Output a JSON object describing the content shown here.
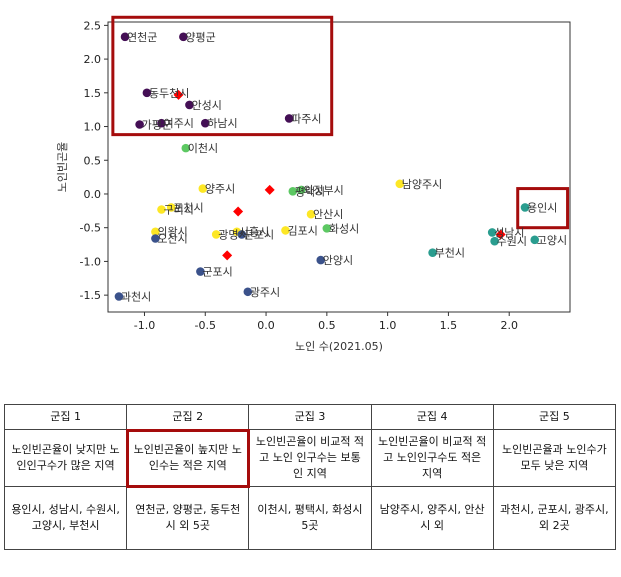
{
  "chart_data": {
    "type": "scatter",
    "xlabel": "노인 수(2021.05)",
    "ylabel": "노인빈곤율",
    "xlim": [
      -1.3,
      2.5
    ],
    "ylim": [
      -1.75,
      2.55
    ],
    "xticks": [
      "-1.0",
      "-0.5",
      "0.0",
      "0.5",
      "1.0",
      "1.5",
      "2.0"
    ],
    "xtick_values": [
      -1.0,
      -0.5,
      0.0,
      0.5,
      1.0,
      1.5,
      2.0
    ],
    "yticks": [
      "2.5",
      "2.0",
      "1.5",
      "1.0",
      "0.5",
      "0.0",
      "-0.5",
      "-1.0",
      "-1.5"
    ],
    "ytick_values": [
      2.5,
      2.0,
      1.5,
      1.0,
      0.5,
      0.0,
      -0.5,
      -1.0,
      -1.5
    ],
    "grid": false,
    "cluster_colors": {
      "c1": "#2a9d8f",
      "c2": "#440f55",
      "c3": "#5cc862",
      "c4": "#fde725",
      "c5": "#3b528b",
      "centroid": "#ff0000",
      "highlight": "#a50c0c"
    },
    "points": [
      {
        "x": -1.16,
        "y": 2.33,
        "cluster": "c2",
        "label": "연천군"
      },
      {
        "x": -0.68,
        "y": 2.33,
        "cluster": "c2",
        "label": "양평군"
      },
      {
        "x": -0.98,
        "y": 1.5,
        "cluster": "c2",
        "label": "동두천시"
      },
      {
        "x": -0.63,
        "y": 1.32,
        "cluster": "c2",
        "label": "안성시"
      },
      {
        "x": 0.19,
        "y": 1.12,
        "cluster": "c2",
        "label": "파주시"
      },
      {
        "x": -1.04,
        "y": 1.03,
        "cluster": "c2",
        "label": "가평군"
      },
      {
        "x": -0.86,
        "y": 1.05,
        "cluster": "c2",
        "label": "여주시"
      },
      {
        "x": -0.5,
        "y": 1.05,
        "cluster": "c2",
        "label": "하남시"
      },
      {
        "x": -0.66,
        "y": 0.68,
        "cluster": "c3",
        "label": "이천시"
      },
      {
        "x": 0.22,
        "y": 0.04,
        "cluster": "c3",
        "label": "평택시"
      },
      {
        "x": 0.29,
        "y": 0.06,
        "cluster": "c3",
        "label": "의정부시"
      },
      {
        "x": 0.5,
        "y": -0.51,
        "cluster": "c3",
        "label": "화성시"
      },
      {
        "x": -0.52,
        "y": 0.08,
        "cluster": "c4",
        "label": "양주시"
      },
      {
        "x": 1.1,
        "y": 0.15,
        "cluster": "c4",
        "label": "남양주시"
      },
      {
        "x": 0.37,
        "y": -0.3,
        "cluster": "c4",
        "label": "안산시"
      },
      {
        "x": -0.78,
        "y": -0.2,
        "cluster": "c4",
        "label": "포천시"
      },
      {
        "x": -0.86,
        "y": -0.23,
        "cluster": "c4",
        "label": "구리시"
      },
      {
        "x": -0.91,
        "y": -0.56,
        "cluster": "c4",
        "label": "의왕시"
      },
      {
        "x": -0.41,
        "y": -0.6,
        "cluster": "c4",
        "label": "광명시"
      },
      {
        "x": -0.24,
        "y": -0.56,
        "cluster": "c4",
        "label": "시흥시"
      },
      {
        "x": 0.16,
        "y": -0.54,
        "cluster": "c4",
        "label": "김포시"
      },
      {
        "x": 2.13,
        "y": -0.2,
        "cluster": "c1",
        "label": "용인시"
      },
      {
        "x": 1.86,
        "y": -0.57,
        "cluster": "c1",
        "label": "성남시"
      },
      {
        "x": 1.88,
        "y": -0.7,
        "cluster": "c1",
        "label": "수원시"
      },
      {
        "x": 2.21,
        "y": -0.68,
        "cluster": "c1",
        "label": "고양시"
      },
      {
        "x": 1.37,
        "y": -0.87,
        "cluster": "c1",
        "label": "부천시"
      },
      {
        "x": -0.91,
        "y": -0.66,
        "cluster": "c5",
        "label": "오산시"
      },
      {
        "x": -0.2,
        "y": -0.6,
        "cluster": "c5",
        "label": "군포시 "
      },
      {
        "x": -0.54,
        "y": -1.15,
        "cluster": "c5",
        "label": "군포시"
      },
      {
        "x": 0.45,
        "y": -0.98,
        "cluster": "c5",
        "label": "안양시"
      },
      {
        "x": -0.15,
        "y": -1.45,
        "cluster": "c5",
        "label": "광주시"
      },
      {
        "x": -1.21,
        "y": -1.52,
        "cluster": "c5",
        "label": "과천시"
      }
    ],
    "centroids": [
      {
        "x": -0.72,
        "y": 1.47
      },
      {
        "x": 0.03,
        "y": 0.06
      },
      {
        "x": -0.23,
        "y": -0.26
      },
      {
        "x": -0.32,
        "y": -0.91
      },
      {
        "x": 1.93,
        "y": -0.6
      }
    ],
    "highlight_boxes": [
      {
        "x0": -1.26,
        "x1": 0.54,
        "y0": 0.88,
        "y1": 2.62
      },
      {
        "x0": 2.07,
        "x1": 2.48,
        "y0": -0.5,
        "y1": 0.08
      }
    ]
  },
  "table": {
    "headers": [
      "군집 1",
      "군집 2",
      "군집 3",
      "군집 4",
      "군집 5"
    ],
    "descriptions": [
      "노인빈곤율이 낮지만 노인인구수가 많은 지역",
      "노인빈곤율이 높지만 노인수는 적은 지역",
      "노인빈곤율이 비교적 적고 노인 인구수는 보통인 지역",
      "노인빈곤율이 비교적 적고 노인인구수도 적은 지역",
      "노인빈곤율과 노인수가 모두 낮은 지역"
    ],
    "members": [
      "용인시, 성남시, 수원시, 고양시, 부천시",
      "연천군, 양평군, 동두천시 외 5곳",
      "이천시, 평택시, 화성시 5곳",
      "남양주시, 양주시, 안산시 외",
      "과천시, 군포시, 광주시, 외 2곳"
    ]
  }
}
